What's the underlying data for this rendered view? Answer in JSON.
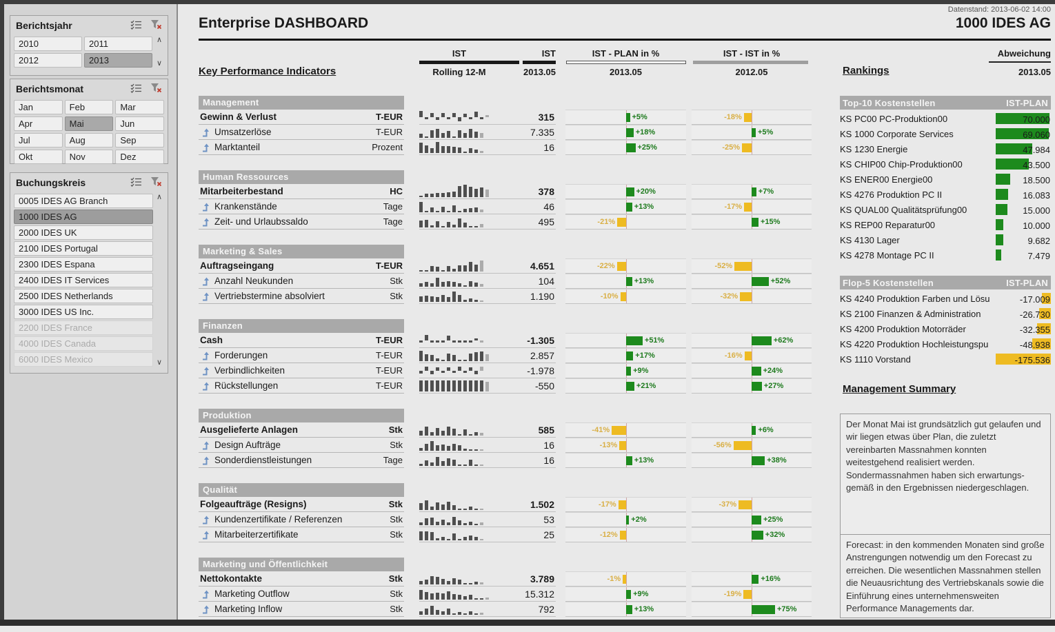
{
  "header": {
    "title": "Enterprise DASHBOARD",
    "company": "1000 IDES AG",
    "datenstand": "Datenstand: 2013-06-02 14:00"
  },
  "slicers": {
    "berichtsjahr": {
      "title": "Berichtsjahr",
      "items": [
        {
          "label": "2010",
          "state": "normal"
        },
        {
          "label": "2011",
          "state": "normal"
        },
        {
          "label": "2012",
          "state": "normal"
        },
        {
          "label": "2013",
          "state": "selected"
        }
      ]
    },
    "berichtsmonat": {
      "title": "Berichtsmonat",
      "items": [
        {
          "label": "Jan",
          "state": "normal"
        },
        {
          "label": "Feb",
          "state": "normal"
        },
        {
          "label": "Mar",
          "state": "normal"
        },
        {
          "label": "Apr",
          "state": "normal"
        },
        {
          "label": "Mai",
          "state": "selected"
        },
        {
          "label": "Jun",
          "state": "normal"
        },
        {
          "label": "Jul",
          "state": "normal"
        },
        {
          "label": "Aug",
          "state": "normal"
        },
        {
          "label": "Sep",
          "state": "normal"
        },
        {
          "label": "Okt",
          "state": "normal"
        },
        {
          "label": "Nov",
          "state": "normal"
        },
        {
          "label": "Dez",
          "state": "normal"
        }
      ]
    },
    "buchungskreis": {
      "title": "Buchungskreis",
      "items": [
        {
          "label": "0005 IDES AG Branch",
          "state": "normal"
        },
        {
          "label": "1000 IDES AG",
          "state": "selected2"
        },
        {
          "label": "2000 IDES UK",
          "state": "normal"
        },
        {
          "label": "2100 IDES Portugal",
          "state": "normal"
        },
        {
          "label": "2300 IDES Espana",
          "state": "normal"
        },
        {
          "label": "2400 IDES IT Services",
          "state": "normal"
        },
        {
          "label": "2500 IDES Netherlands",
          "state": "normal"
        },
        {
          "label": "3000 IDES US Inc.",
          "state": "normal"
        },
        {
          "label": "2200 IDES France",
          "state": "disabled"
        },
        {
          "label": "4000 IDES Canada",
          "state": "disabled"
        },
        {
          "label": "6000 IDES Mexico",
          "state": "disabled"
        }
      ]
    }
  },
  "kpi": {
    "heading": "Key Performance Indicators",
    "columns": {
      "ist": "IST",
      "ist2": "IST",
      "rolling": "Rolling 12-M",
      "ist_month": "2013.05",
      "plan": "IST - PLAN in %",
      "plan_month": "2013.05",
      "prev": "IST - IST in %",
      "prev_month": "2012.05"
    },
    "sections": [
      {
        "name": "Management",
        "rows": [
          {
            "label": "Gewinn & Verlust",
            "unit": "T-EUR",
            "level": "parent",
            "value": "315",
            "plan_pct": 5,
            "prev_pct": -18,
            "spark": [
              70,
              -30,
              50,
              -40,
              45,
              -25,
              45,
              -50,
              40,
              -15,
              60,
              -30,
              25
            ]
          },
          {
            "label": "Umsatzerlöse",
            "unit": "T-EUR",
            "level": "sub",
            "value": "7.335",
            "plan_pct": 18,
            "prev_pct": 5,
            "spark": [
              25,
              5,
              50,
              55,
              30,
              42,
              6,
              48,
              28,
              55,
              38,
              30
            ]
          },
          {
            "label": "Marktanteil",
            "unit": "Prozent",
            "level": "sub",
            "value": "16",
            "plan_pct": 25,
            "prev_pct": -25,
            "spark": [
              65,
              50,
              28,
              70,
              45,
              42,
              40,
              35,
              8,
              28,
              22,
              12
            ]
          }
        ]
      },
      {
        "name": "Human Ressources",
        "rows": [
          {
            "label": "Mitarbeiterbestand",
            "unit": "HC",
            "level": "parent",
            "value": "378",
            "plan_pct": 20,
            "prev_pct": 7,
            "spark": [
              5,
              20,
              22,
              25,
              25,
              28,
              32,
              72,
              78,
              68,
              52,
              62,
              48
            ]
          },
          {
            "label": "Krankenstände",
            "unit": "Tage",
            "level": "sub",
            "value": "46",
            "plan_pct": 13,
            "prev_pct": -17,
            "spark": [
              68,
              8,
              28,
              5,
              32,
              6,
              42,
              8,
              22,
              25,
              28,
              18
            ]
          },
          {
            "label": "Zeit- und Urlaubssaldo",
            "unit": "Tage",
            "level": "sub",
            "value": "495",
            "plan_pct": -21,
            "prev_pct": 15,
            "spark": [
              42,
              48,
              12,
              38,
              8,
              32,
              18,
              55,
              28,
              5,
              5,
              22
            ]
          }
        ]
      },
      {
        "name": "Marketing & Sales",
        "rows": [
          {
            "label": "Auftragseingang",
            "unit": "T-EUR",
            "level": "parent",
            "value": "4.651",
            "plan_pct": -22,
            "prev_pct": -52,
            "spark": [
              5,
              5,
              32,
              28,
              8,
              32,
              15,
              38,
              38,
              62,
              45,
              72
            ]
          },
          {
            "label": "Anzahl Neukunden",
            "unit": "Stk",
            "level": "sub",
            "value": "104",
            "plan_pct": 13,
            "prev_pct": 52,
            "spark": [
              22,
              28,
              22,
              55,
              28,
              32,
              28,
              22,
              6,
              32,
              25,
              18
            ]
          },
          {
            "label": "Vertriebstermine absolviert",
            "unit": "Stk",
            "level": "sub",
            "value": "1.190",
            "plan_pct": -10,
            "prev_pct": -32,
            "spark": [
              32,
              38,
              32,
              28,
              42,
              28,
              65,
              42,
              12,
              22,
              10,
              8
            ]
          }
        ]
      },
      {
        "name": "Finanzen",
        "rows": [
          {
            "label": "Cash",
            "unit": "T-EUR",
            "level": "parent",
            "value": "-1.305",
            "plan_pct": 51,
            "prev_pct": 62,
            "spark": [
              -20,
              60,
              -15,
              -5,
              -5,
              55,
              -25,
              -5,
              -10,
              -18,
              15,
              -10
            ]
          },
          {
            "label": "Forderungen",
            "unit": "T-EUR",
            "level": "sub",
            "value": "2.857",
            "plan_pct": 17,
            "prev_pct": -16,
            "spark": [
              65,
              42,
              38,
              18,
              5,
              48,
              40,
              8,
              5,
              50,
              55,
              60,
              45
            ]
          },
          {
            "label": "Verbindlichkeiten",
            "unit": "T-EUR",
            "level": "sub",
            "value": "-1.978",
            "plan_pct": 9,
            "prev_pct": 24,
            "spark": [
              -40,
              50,
              -45,
              35,
              -15,
              40,
              -20,
              45,
              -25,
              40,
              -45,
              45
            ]
          },
          {
            "label": "Rückstellungen",
            "unit": "T-EUR",
            "level": "sub",
            "value": "-550",
            "plan_pct": 21,
            "prev_pct": 27,
            "spark": [
              70,
              70,
              70,
              70,
              70,
              70,
              70,
              70,
              70,
              70,
              70,
              70,
              60
            ]
          }
        ]
      },
      {
        "name": "Produktion",
        "rows": [
          {
            "label": "Ausgelieferte Anlagen",
            "unit": "Stk",
            "level": "parent",
            "value": "585",
            "plan_pct": -41,
            "prev_pct": 6,
            "spark": [
              30,
              55,
              22,
              50,
              28,
              55,
              42,
              8,
              38,
              6,
              22,
              18
            ]
          },
          {
            "label": "Design Aufträge",
            "unit": "Stk",
            "level": "sub",
            "value": "16",
            "plan_pct": -13,
            "prev_pct": -56,
            "spark": [
              15,
              42,
              60,
              32,
              38,
              28,
              42,
              32,
              10,
              5,
              8,
              8
            ]
          },
          {
            "label": "Sonderdienstleistungen",
            "unit": "Tage",
            "level": "sub",
            "value": "16",
            "plan_pct": 13,
            "prev_pct": 38,
            "spark": [
              12,
              35,
              20,
              55,
              30,
              48,
              40,
              5,
              5,
              40,
              4,
              4
            ]
          }
        ]
      },
      {
        "name": "Qualität",
        "rows": [
          {
            "label": "Folgeaufträge (Resigns)",
            "unit": "Stk",
            "level": "parent",
            "value": "1.502",
            "plan_pct": -17,
            "prev_pct": -37,
            "spark": [
              42,
              62,
              22,
              48,
              32,
              52,
              28,
              8,
              5,
              22,
              6,
              6
            ]
          },
          {
            "label": "Kundenzertifikate / Referenzen",
            "unit": "Stk",
            "level": "sub",
            "value": "53",
            "plan_pct": 2,
            "prev_pct": 25,
            "spark": [
              18,
              42,
              48,
              22,
              32,
              18,
              52,
              28,
              10,
              22,
              6,
              18
            ]
          },
          {
            "label": "Mitarbeiterzertifikate",
            "unit": "Stk",
            "level": "sub",
            "value": "25",
            "plan_pct": -12,
            "prev_pct": 32,
            "spark": [
              58,
              58,
              52,
              12,
              22,
              6,
              42,
              5,
              22,
              28,
              22,
              8
            ]
          }
        ]
      },
      {
        "name": "Marketing und Öffentlichkeit",
        "rows": [
          {
            "label": "Nettokontakte",
            "unit": "Stk",
            "level": "parent",
            "value": "3.789",
            "plan_pct": -1,
            "prev_pct": 16,
            "spark": [
              22,
              28,
              52,
              48,
              32,
              22,
              38,
              28,
              6,
              6,
              18,
              12
            ]
          },
          {
            "label": "Marketing Outflow",
            "unit": "Stk",
            "level": "sub",
            "value": "15.312",
            "plan_pct": 9,
            "prev_pct": -19,
            "spark": [
              62,
              48,
              38,
              42,
              38,
              52,
              32,
              28,
              22,
              28,
              6,
              8,
              12
            ]
          },
          {
            "label": "Marketing Inflow",
            "unit": "Stk",
            "level": "sub",
            "value": "792",
            "plan_pct": 13,
            "prev_pct": 75,
            "spark": [
              22,
              38,
              58,
              28,
              22,
              38,
              6,
              18,
              6,
              22,
              6,
              12
            ]
          }
        ]
      }
    ]
  },
  "rankings": {
    "title": "Rankings",
    "abweichung": "Abweichung",
    "abweichung_month": "2013.05",
    "top10": {
      "title": "Top-10 Kostenstellen",
      "col": "IST-PLAN",
      "max": 70000,
      "rows": [
        {
          "label": "KS PC00 PC-Produktion00",
          "value": "70.000",
          "num": 70000
        },
        {
          "label": "KS 1000 Corporate Services",
          "value": "69.060",
          "num": 69060
        },
        {
          "label": "KS 1230 Energie",
          "value": "47.984",
          "num": 47984
        },
        {
          "label": "KS CHIP00 Chip-Produktion00",
          "value": "43.500",
          "num": 43500
        },
        {
          "label": "KS ENER00 Energie00",
          "value": "18.500",
          "num": 18500
        },
        {
          "label": "KS 4276 Produktion PC II",
          "value": "16.083",
          "num": 16083
        },
        {
          "label": "KS QUAL00 Qualitätsprüfung00",
          "value": "15.000",
          "num": 15000
        },
        {
          "label": "KS REP00 Reparatur00",
          "value": "10.000",
          "num": 10000
        },
        {
          "label": "KS 4130 Lager",
          "value": "9.682",
          "num": 9682
        },
        {
          "label": "KS 4278 Montage PC II",
          "value": "7.479",
          "num": 7479
        }
      ]
    },
    "flop5": {
      "title": "Flop-5 Kostenstellen",
      "col": "IST-PLAN",
      "max": 175536,
      "rows": [
        {
          "label": "KS 4240 Produktion Farben und Lösu",
          "value": "-17.009",
          "num": -17009
        },
        {
          "label": "KS 2100 Finanzen & Administration",
          "value": "-26.730",
          "num": -26730
        },
        {
          "label": "KS 4200 Produktion Motorräder",
          "value": "-32.355",
          "num": -32355
        },
        {
          "label": "KS 4220 Produktion Hochleistungspu",
          "value": "-48.938",
          "num": -48938
        },
        {
          "label": "KS 1110 Vorstand",
          "value": "-175.536",
          "num": -175536
        }
      ]
    },
    "summary": {
      "title": "Management Summary",
      "p1": "Der Monat Mai ist grundsätzlich gut gelaufen und wir liegen etwas über Plan, die zuletzt vereinbarten Massnahmen konnten weitestgehend realisiert werden. Sondermassnahmen haben sich erwartungs-gemäß in den Ergebnissen niedergeschlagen.",
      "p2": "Forecast: in den kommenden Monaten sind große Anstrengungen notwendig um den Forecast zu erreichen. Die wesentlichen Massnahmen stellen die Neuausrichtung des Vertriebskanals sowie die Einführung eines unternehmensweiten Performance Managements dar."
    }
  },
  "colors": {
    "green": "#1d8a1d",
    "green_text": "#1d7a1d",
    "amber": "#eebb22",
    "amber_text": "#d9af45",
    "spark_bar": "#4f4f4f",
    "spark_last": "#ababab"
  }
}
